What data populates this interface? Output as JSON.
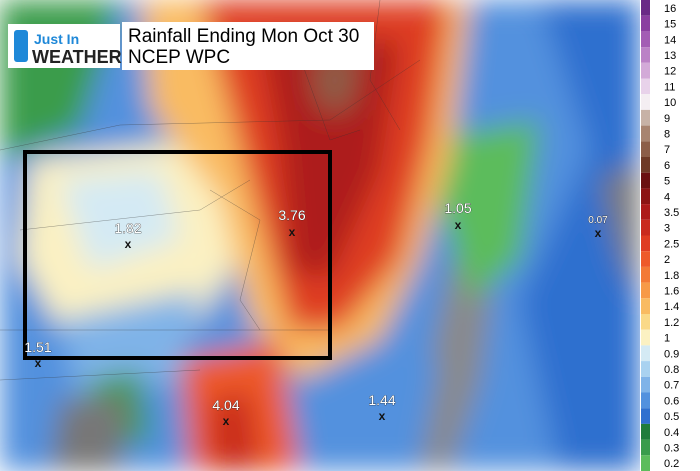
{
  "header": {
    "title": "Rainfall Ending Mon Oct 30",
    "subtitle": "NCEP WPC"
  },
  "logo": {
    "line1": "Just In",
    "line2": "WEATHER"
  },
  "points": [
    {
      "label": "1.82"
    },
    {
      "label": "3.76"
    },
    {
      "label": "1.05"
    },
    {
      "label": "0.07"
    },
    {
      "label": "1.51"
    },
    {
      "label": "4.04"
    },
    {
      "label": "1.44"
    }
  ],
  "legend": [
    {
      "label": "16",
      "color": "#6a2a86"
    },
    {
      "label": "15",
      "color": "#8a3fa0"
    },
    {
      "label": "14",
      "color": "#a35db4"
    },
    {
      "label": "13",
      "color": "#bb82c6"
    },
    {
      "label": "12",
      "color": "#d3aad8"
    },
    {
      "label": "11",
      "color": "#e8d2ea"
    },
    {
      "label": "10",
      "color": "#f4eef2"
    },
    {
      "label": "9",
      "color": "#c7b2a6"
    },
    {
      "label": "8",
      "color": "#a88470"
    },
    {
      "label": "7",
      "color": "#8c5e48"
    },
    {
      "label": "6",
      "color": "#6e3a26"
    },
    {
      "label": "5",
      "color": "#6a1010"
    },
    {
      "label": "4",
      "color": "#8c1414"
    },
    {
      "label": "3.5",
      "color": "#ad1a1a"
    },
    {
      "label": "3",
      "color": "#c92a1e"
    },
    {
      "label": "2.5",
      "color": "#df3c22"
    },
    {
      "label": "2",
      "color": "#ee5a2a"
    },
    {
      "label": "1.8",
      "color": "#f37a36"
    },
    {
      "label": "1.6",
      "color": "#f79a48"
    },
    {
      "label": "1.4",
      "color": "#f9bb62"
    },
    {
      "label": "1.2",
      "color": "#fad988"
    },
    {
      "label": "1",
      "color": "#fbf1c2"
    },
    {
      "label": "0.9",
      "color": "#d4eaf4"
    },
    {
      "label": "0.8",
      "color": "#a9d2f0"
    },
    {
      "label": "0.7",
      "color": "#7fb3e8"
    },
    {
      "label": "0.6",
      "color": "#5291de"
    },
    {
      "label": "0.5",
      "color": "#2f70cf"
    },
    {
      "label": "0.4",
      "color": "#1f7c3c"
    },
    {
      "label": "0.3",
      "color": "#3a9c4c"
    },
    {
      "label": "0.2",
      "color": "#5cbc5c"
    }
  ]
}
